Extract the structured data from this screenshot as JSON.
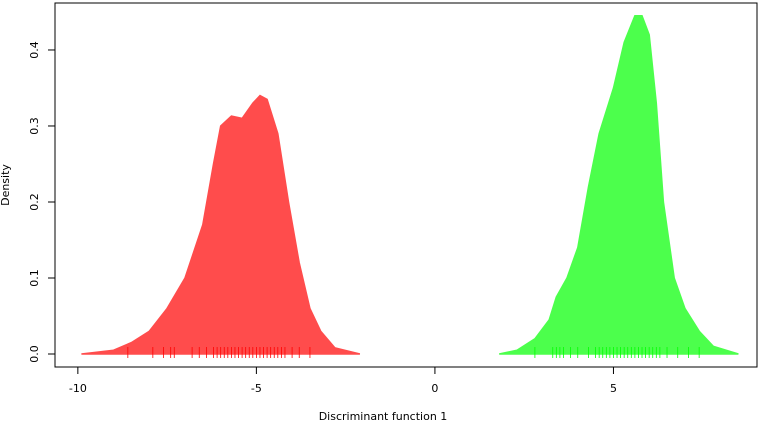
{
  "chart_data": {
    "type": "density",
    "xlabel": "Discriminant function 1",
    "ylabel": "Density",
    "xlim": [
      -10.64,
      9.02
    ],
    "ylim": [
      -0.0171,
      0.4618
    ],
    "xticks": [
      -10,
      -5,
      0,
      5
    ],
    "yticks": [
      {
        "value": 0,
        "label": "0.0"
      },
      0.1,
      0.2,
      0.3,
      0.4
    ],
    "series": [
      {
        "color": "#ff4c4c",
        "rug_color": "#ff0000",
        "x": [
          -9.9,
          -9,
          -8.5,
          -8,
          -7.5,
          -7,
          -6.5,
          -6.2,
          -6,
          -5.7,
          -5.4,
          -5.1,
          -4.9,
          -4.7,
          -4.4,
          -4.1,
          -3.8,
          -3.5,
          -3.2,
          -2.8,
          -2.1
        ],
        "values": [
          0,
          0.005,
          0.015,
          0.03,
          0.06,
          0.1,
          0.17,
          0.25,
          0.3,
          0.313,
          0.31,
          0.33,
          0.34,
          0.335,
          0.29,
          0.2,
          0.12,
          0.06,
          0.03,
          0.008,
          0
        ],
        "rug": [
          -8.6,
          -7.9,
          -7.6,
          -7.4,
          -7.3,
          -6.8,
          -6.6,
          -6.4,
          -6.2,
          -6.1,
          -6.0,
          -5.9,
          -5.8,
          -5.7,
          -5.6,
          -5.5,
          -5.4,
          -5.3,
          -5.2,
          -5.1,
          -5.0,
          -4.9,
          -4.8,
          -4.7,
          -4.6,
          -4.5,
          -4.4,
          -4.3,
          -4.2,
          -4.0,
          -3.8,
          -3.5
        ]
      },
      {
        "color": "#4cff4c",
        "rug_color": "#00ff00",
        "x": [
          1.8,
          2.3,
          2.8,
          3.2,
          3.4,
          3.7,
          4.0,
          4.3,
          4.6,
          5.0,
          5.3,
          5.6,
          5.8,
          6.0,
          6.2,
          6.4,
          6.7,
          7.0,
          7.4,
          7.8,
          8.5
        ],
        "values": [
          0,
          0.005,
          0.02,
          0.045,
          0.075,
          0.1,
          0.14,
          0.22,
          0.29,
          0.35,
          0.41,
          0.445,
          0.445,
          0.42,
          0.33,
          0.2,
          0.1,
          0.06,
          0.03,
          0.01,
          0
        ],
        "rug": [
          2.8,
          3.3,
          3.4,
          3.5,
          3.6,
          3.8,
          4.0,
          4.3,
          4.5,
          4.6,
          4.7,
          4.8,
          4.9,
          5.0,
          5.1,
          5.2,
          5.3,
          5.4,
          5.5,
          5.6,
          5.7,
          5.8,
          5.9,
          6.0,
          6.1,
          6.2,
          6.3,
          6.5,
          6.8,
          7.1,
          7.4
        ]
      }
    ]
  }
}
